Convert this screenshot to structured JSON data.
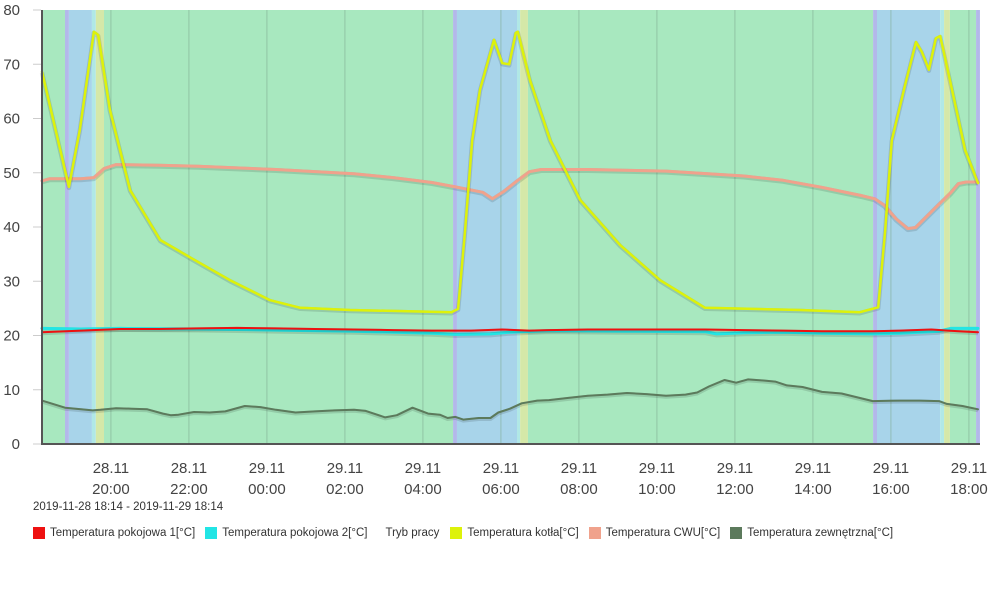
{
  "chart_data": {
    "type": "line",
    "title": "",
    "xlabel": "",
    "ylabel": "",
    "ylim": [
      0,
      80
    ],
    "yticks": [
      0,
      10,
      20,
      30,
      40,
      50,
      60,
      70,
      80
    ],
    "xlim_hours": [
      0,
      24
    ],
    "x_start": "2019-11-28 18:14",
    "x_end": "2019-11-29 18:14",
    "grid": true,
    "legend_position": "bottom",
    "xticks": [
      {
        "h": 1.767,
        "date": "28.11",
        "time": "20:00"
      },
      {
        "h": 3.767,
        "date": "28.11",
        "time": "22:00"
      },
      {
        "h": 5.767,
        "date": "29.11",
        "time": "00:00"
      },
      {
        "h": 7.767,
        "date": "29.11",
        "time": "02:00"
      },
      {
        "h": 9.767,
        "date": "29.11",
        "time": "04:00"
      },
      {
        "h": 11.767,
        "date": "29.11",
        "time": "06:00"
      },
      {
        "h": 13.767,
        "date": "29.11",
        "time": "08:00"
      },
      {
        "h": 15.767,
        "date": "29.11",
        "time": "10:00"
      },
      {
        "h": 17.767,
        "date": "29.11",
        "time": "12:00"
      },
      {
        "h": 19.767,
        "date": "29.11",
        "time": "14:00"
      },
      {
        "h": 21.767,
        "date": "29.11",
        "time": "16:00"
      },
      {
        "h": 23.767,
        "date": "29.11",
        "time": "18:00"
      }
    ],
    "mode_bands": {
      "name": "Tryb pracy",
      "segments": [
        {
          "from": 0.0,
          "to": 0.59,
          "color": "#a8e8bf"
        },
        {
          "from": 0.59,
          "to": 0.69,
          "color": "#b3b8ea"
        },
        {
          "from": 0.69,
          "to": 1.28,
          "color": "#a8d4ea"
        },
        {
          "from": 1.28,
          "to": 1.38,
          "color": "#b0e8e6"
        },
        {
          "from": 1.38,
          "to": 1.59,
          "color": "#d5e8a8"
        },
        {
          "from": 1.59,
          "to": 10.54,
          "color": "#a8e8bf"
        },
        {
          "from": 10.54,
          "to": 10.64,
          "color": "#b3b8ea"
        },
        {
          "from": 10.64,
          "to": 12.18,
          "color": "#a8d4ea"
        },
        {
          "from": 12.18,
          "to": 12.26,
          "color": "#b0e8e6"
        },
        {
          "from": 12.26,
          "to": 12.46,
          "color": "#d5e8a8"
        },
        {
          "from": 12.46,
          "to": 21.31,
          "color": "#a8e8bf"
        },
        {
          "from": 21.31,
          "to": 21.41,
          "color": "#b3b8ea"
        },
        {
          "from": 21.41,
          "to": 23.03,
          "color": "#a8d4ea"
        },
        {
          "from": 23.03,
          "to": 23.13,
          "color": "#b0e8e6"
        },
        {
          "from": 23.13,
          "to": 23.28,
          "color": "#d5e8a8"
        },
        {
          "from": 23.28,
          "to": 23.95,
          "color": "#a8e8bf"
        },
        {
          "from": 23.95,
          "to": 24.05,
          "color": "#b3b8ea"
        }
      ]
    },
    "series": [
      {
        "name": "Temperatura pokojowa 2[°C]",
        "color": "#22e5e5",
        "width": 3,
        "points": [
          [
            0,
            21.3
          ],
          [
            1,
            21.2
          ],
          [
            2,
            21.3
          ],
          [
            4,
            21.2
          ],
          [
            6,
            21.0
          ],
          [
            8,
            20.8
          ],
          [
            10,
            20.4
          ],
          [
            10.6,
            20.2
          ],
          [
            11.5,
            20.3
          ],
          [
            12,
            20.6
          ],
          [
            13,
            20.9
          ],
          [
            15,
            20.8
          ],
          [
            17,
            20.7
          ],
          [
            17.3,
            20.3
          ],
          [
            18,
            20.5
          ],
          [
            19,
            20.6
          ],
          [
            20,
            20.4
          ],
          [
            21.3,
            20.3
          ],
          [
            22,
            20.4
          ],
          [
            23,
            20.8
          ],
          [
            23.3,
            21.3
          ],
          [
            24,
            21.3
          ]
        ]
      },
      {
        "name": "Temperatura pokojowa 1[°C]",
        "color": "#ee1111",
        "width": 2,
        "points": [
          [
            0,
            20.6
          ],
          [
            1,
            20.9
          ],
          [
            2,
            21.2
          ],
          [
            3,
            21.2
          ],
          [
            4,
            21.3
          ],
          [
            5,
            21.4
          ],
          [
            6,
            21.3
          ],
          [
            7,
            21.2
          ],
          [
            8,
            21.1
          ],
          [
            9,
            21.0
          ],
          [
            10,
            20.9
          ],
          [
            11,
            20.9
          ],
          [
            11.8,
            21.1
          ],
          [
            12.5,
            20.9
          ],
          [
            13,
            21.0
          ],
          [
            14,
            21.1
          ],
          [
            15,
            21.1
          ],
          [
            17,
            21.1
          ],
          [
            18,
            21.0
          ],
          [
            19,
            20.9
          ],
          [
            20,
            20.8
          ],
          [
            21.3,
            20.8
          ],
          [
            22,
            20.9
          ],
          [
            22.8,
            21.1
          ],
          [
            23.5,
            20.8
          ],
          [
            24,
            20.6
          ]
        ]
      },
      {
        "name": "Temperatura zewnętrzna[°C]",
        "color": "#5c7a5c",
        "width": 2,
        "points": [
          [
            0,
            8.0
          ],
          [
            0.59,
            6.7
          ],
          [
            1.0,
            6.4
          ],
          [
            1.3,
            6.2
          ],
          [
            1.5,
            6.3
          ],
          [
            1.9,
            6.6
          ],
          [
            2.3,
            6.5
          ],
          [
            2.7,
            6.4
          ],
          [
            3.1,
            5.6
          ],
          [
            3.3,
            5.3
          ],
          [
            3.5,
            5.4
          ],
          [
            3.9,
            5.9
          ],
          [
            4.3,
            5.8
          ],
          [
            4.7,
            6.0
          ],
          [
            5.2,
            7.0
          ],
          [
            5.6,
            6.8
          ],
          [
            6.0,
            6.3
          ],
          [
            6.5,
            5.8
          ],
          [
            7.0,
            6.0
          ],
          [
            7.5,
            6.2
          ],
          [
            8.0,
            6.3
          ],
          [
            8.3,
            6.1
          ],
          [
            8.8,
            4.9
          ],
          [
            9.1,
            5.3
          ],
          [
            9.5,
            6.7
          ],
          [
            9.9,
            5.6
          ],
          [
            10.2,
            5.4
          ],
          [
            10.4,
            4.8
          ],
          [
            10.6,
            5.0
          ],
          [
            10.8,
            4.5
          ],
          [
            11.2,
            4.8
          ],
          [
            11.5,
            4.8
          ],
          [
            11.7,
            5.8
          ],
          [
            12.0,
            6.5
          ],
          [
            12.3,
            7.5
          ],
          [
            12.7,
            8.0
          ],
          [
            13.0,
            8.1
          ],
          [
            13.5,
            8.5
          ],
          [
            14.0,
            8.9
          ],
          [
            14.5,
            9.1
          ],
          [
            15.0,
            9.4
          ],
          [
            15.5,
            9.2
          ],
          [
            16.0,
            8.9
          ],
          [
            16.5,
            9.1
          ],
          [
            16.8,
            9.5
          ],
          [
            17.1,
            10.6
          ],
          [
            17.5,
            11.8
          ],
          [
            17.8,
            11.3
          ],
          [
            18.1,
            11.9
          ],
          [
            18.5,
            11.7
          ],
          [
            18.8,
            11.5
          ],
          [
            19.1,
            10.8
          ],
          [
            19.5,
            10.5
          ],
          [
            20.0,
            9.6
          ],
          [
            20.5,
            9.3
          ],
          [
            21.3,
            7.9
          ],
          [
            22.0,
            8.0
          ],
          [
            22.5,
            8.0
          ],
          [
            23.0,
            7.9
          ],
          [
            23.2,
            7.4
          ],
          [
            23.6,
            7.0
          ],
          [
            24,
            6.4
          ]
        ]
      },
      {
        "name": "Temperatura CWU[°C]",
        "color": "#f0a28c",
        "width": 3,
        "points": [
          [
            0,
            48.5
          ],
          [
            0.2,
            48.9
          ],
          [
            1.0,
            48.9
          ],
          [
            1.33,
            49.1
          ],
          [
            1.6,
            50.8
          ],
          [
            1.9,
            51.5
          ],
          [
            3,
            51.4
          ],
          [
            4,
            51.2
          ],
          [
            6,
            50.6
          ],
          [
            8,
            49.8
          ],
          [
            9,
            49.1
          ],
          [
            10,
            48.2
          ],
          [
            10.6,
            47.4
          ],
          [
            11.3,
            46.4
          ],
          [
            11.55,
            45.2
          ],
          [
            11.85,
            46.6
          ],
          [
            12.2,
            48.6
          ],
          [
            12.5,
            50.2
          ],
          [
            12.8,
            50.6
          ],
          [
            14,
            50.6
          ],
          [
            16,
            50.3
          ],
          [
            18,
            49.4
          ],
          [
            19,
            48.6
          ],
          [
            20,
            47.3
          ],
          [
            21.0,
            45.8
          ],
          [
            21.35,
            45.2
          ],
          [
            21.6,
            44.0
          ],
          [
            21.9,
            41.5
          ],
          [
            22.2,
            39.7
          ],
          [
            22.4,
            39.9
          ],
          [
            23.0,
            44.2
          ],
          [
            23.3,
            46.3
          ],
          [
            23.5,
            48.0
          ],
          [
            23.7,
            48.3
          ],
          [
            24,
            48.3
          ]
        ]
      },
      {
        "name": "Temperatura kotła[°C]",
        "color": "#ddf20a",
        "width": 2.5,
        "points": [
          [
            0,
            68.6
          ],
          [
            0.69,
            47.4
          ],
          [
            0.97,
            57.9
          ],
          [
            1.25,
            72
          ],
          [
            1.33,
            76
          ],
          [
            1.44,
            75.4
          ],
          [
            1.74,
            61.6
          ],
          [
            2.26,
            46.8
          ],
          [
            3.03,
            37.6
          ],
          [
            3.82,
            34.3
          ],
          [
            4.82,
            30.2
          ],
          [
            5.85,
            26.5
          ],
          [
            6.62,
            25.1
          ],
          [
            7.9,
            24.7
          ],
          [
            10.5,
            24.3
          ],
          [
            10.67,
            24.9
          ],
          [
            10.85,
            39.4
          ],
          [
            11.03,
            56
          ],
          [
            11.23,
            65.3
          ],
          [
            11.59,
            74.5
          ],
          [
            11.8,
            70.2
          ],
          [
            11.98,
            70.0
          ],
          [
            12.15,
            75.8
          ],
          [
            12.2,
            76
          ],
          [
            12.51,
            67.1
          ],
          [
            13.03,
            56
          ],
          [
            13.8,
            45
          ],
          [
            14.82,
            36.7
          ],
          [
            15.85,
            30.2
          ],
          [
            17.0,
            25.1
          ],
          [
            19.44,
            24.7
          ],
          [
            20.97,
            24.3
          ],
          [
            21.44,
            25.2
          ],
          [
            21.62,
            39.4
          ],
          [
            21.79,
            56
          ],
          [
            22.13,
            66.2
          ],
          [
            22.41,
            74.1
          ],
          [
            22.56,
            72.3
          ],
          [
            22.74,
            69
          ],
          [
            22.92,
            74.8
          ],
          [
            23.03,
            75.2
          ],
          [
            23.28,
            67.1
          ],
          [
            23.67,
            54.2
          ],
          [
            24,
            48.1
          ]
        ]
      }
    ]
  },
  "range_label": "2019-11-28 18:14 - 2019-11-29 18:14",
  "legend": [
    {
      "label": "Temperatura pokojowa 1[°C]",
      "color": "#ee1111",
      "swatch": true
    },
    {
      "label": "Temperatura pokojowa 2[°C]",
      "color": "#22e5e5",
      "swatch": true
    },
    {
      "label": "Tryb pracy",
      "color": "",
      "swatch": false
    },
    {
      "label": "Temperatura kotła[°C]",
      "color": "#ddf20a",
      "swatch": true
    },
    {
      "label": "Temperatura CWU[°C]",
      "color": "#f0a28c",
      "swatch": true
    },
    {
      "label": "Temperatura zewnętrzna[°C]",
      "color": "#5c7a5c",
      "swatch": true
    }
  ]
}
